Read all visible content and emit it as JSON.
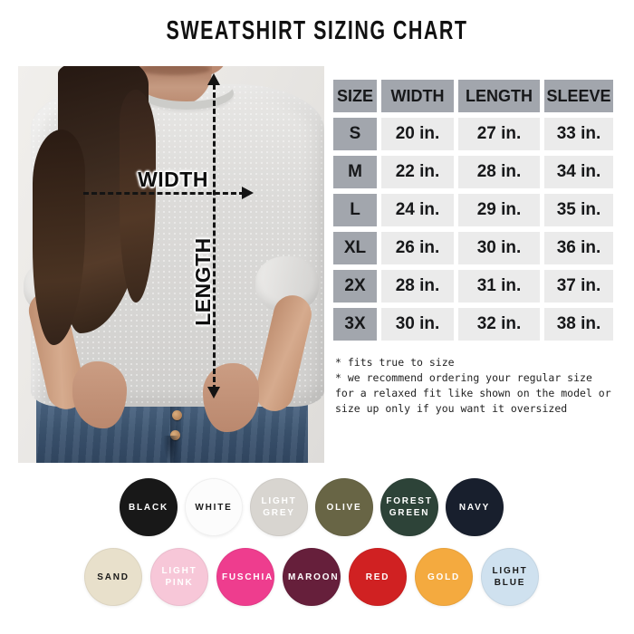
{
  "title": "SWEATSHIRT SIZING CHART",
  "diagram": {
    "width_label": "WIDTH",
    "length_label": "LENGTH"
  },
  "table": {
    "headers": [
      "SIZE",
      "WIDTH",
      "LENGTH",
      "SLEEVE"
    ],
    "header_bg": "#a2a6ad",
    "cell_bg": "#ebebeb",
    "rows": [
      {
        "size": "S",
        "width": "20 in.",
        "length": "27 in.",
        "sleeve": "33 in."
      },
      {
        "size": "M",
        "width": "22 in.",
        "length": "28 in.",
        "sleeve": "34 in."
      },
      {
        "size": "L",
        "width": "24 in.",
        "length": "29 in.",
        "sleeve": "35 in."
      },
      {
        "size": "XL",
        "width": "26 in.",
        "length": "30 in.",
        "sleeve": "36 in."
      },
      {
        "size": "2X",
        "width": "28 in.",
        "length": "31 in.",
        "sleeve": "37 in."
      },
      {
        "size": "3X",
        "width": "30 in.",
        "length": "32 in.",
        "sleeve": "38 in."
      }
    ]
  },
  "notes": {
    "lines": [
      "* fits true to size",
      "* we recommend ordering your regular size",
      "for a relaxed fit like shown on the model or",
      "size up only if you want it oversized"
    ]
  },
  "swatches": {
    "row1": [
      {
        "label": "BLACK",
        "color": "#181818",
        "text": "#ffffff"
      },
      {
        "label": "WHITE",
        "color": "#fcfcfc",
        "text": "#1a1a1a"
      },
      {
        "label": "LIGHT GREY",
        "color": "#d8d5d0",
        "text": "#ffffff"
      },
      {
        "label": "OLIVE",
        "color": "#686545",
        "text": "#ffffff"
      },
      {
        "label": "FOREST GREEN",
        "color": "#2d4338",
        "text": "#ffffff"
      },
      {
        "label": "NAVY",
        "color": "#181f2d",
        "text": "#ffffff"
      }
    ],
    "row2": [
      {
        "label": "SAND",
        "color": "#e8e0cb",
        "text": "#1a1a1a"
      },
      {
        "label": "LIGHT PINK",
        "color": "#f7c7d8",
        "text": "#ffffff"
      },
      {
        "label": "FUSCHIA",
        "color": "#ee3d8e",
        "text": "#ffffff"
      },
      {
        "label": "MAROON",
        "color": "#661f3b",
        "text": "#ffffff"
      },
      {
        "label": "RED",
        "color": "#d02122",
        "text": "#ffffff"
      },
      {
        "label": "GOLD",
        "color": "#f4aa3f",
        "text": "#ffffff"
      },
      {
        "label": "LIGHT BLUE",
        "color": "#cfe1ef",
        "text": "#1a1a1a"
      }
    ]
  }
}
